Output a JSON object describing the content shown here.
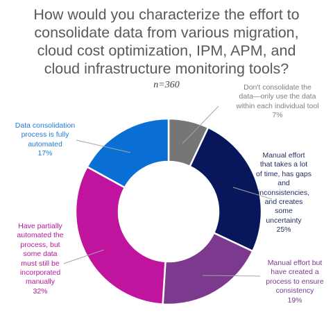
{
  "chart_data": {
    "type": "pie",
    "variant": "donut",
    "title": "How would you characterize the effort to consolidate data from various migration, cloud cost optimization, IPM, APM, and cloud infrastructure monitoring tools?",
    "subtitle": "n=360",
    "slices": [
      {
        "name": "Don't consolidate the data—only use the data within each individual tool",
        "value": 7,
        "label_lines": [
          "Don't consolidate the",
          "data—only use the data",
          "within each individual tool"
        ],
        "pct_label": "7%",
        "color": "#767676",
        "label_color": "#7f7f7f"
      },
      {
        "name": "Manual effort that takes a lot of time, has gaps and inconsistencies, and creates some uncertainty",
        "value": 25,
        "label_lines": [
          "Manual effort",
          "that takes a lot",
          "of time, has gaps",
          "and",
          "inconsistencies,",
          "and creates",
          "some",
          "uncertainty"
        ],
        "pct_label": "25%",
        "color": "#08175c",
        "label_color": "#1f2a5e"
      },
      {
        "name": "Manual effort but have created a process to ensure consistency",
        "value": 19,
        "label_lines": [
          "Manual effort but",
          "have created a",
          "process to ensure",
          "consistency"
        ],
        "pct_label": "19%",
        "color": "#7b3a8e",
        "label_color": "#7b3a8e"
      },
      {
        "name": "Have partially automated the process, but some data must still be incorporated manually",
        "value": 32,
        "label_lines": [
          "Have partially",
          "automated the",
          "process, but",
          "some data",
          "must still be",
          "incorporated",
          "manually"
        ],
        "pct_label": "32%",
        "color": "#c0139e",
        "label_color": "#b5179a"
      },
      {
        "name": "Data consolidation process is fully automated",
        "value": 17,
        "label_lines": [
          "Data consolidation",
          "process is fully",
          "automated"
        ],
        "pct_label": "17%",
        "color": "#0a6fd4",
        "label_color": "#1f7ad6"
      }
    ]
  }
}
